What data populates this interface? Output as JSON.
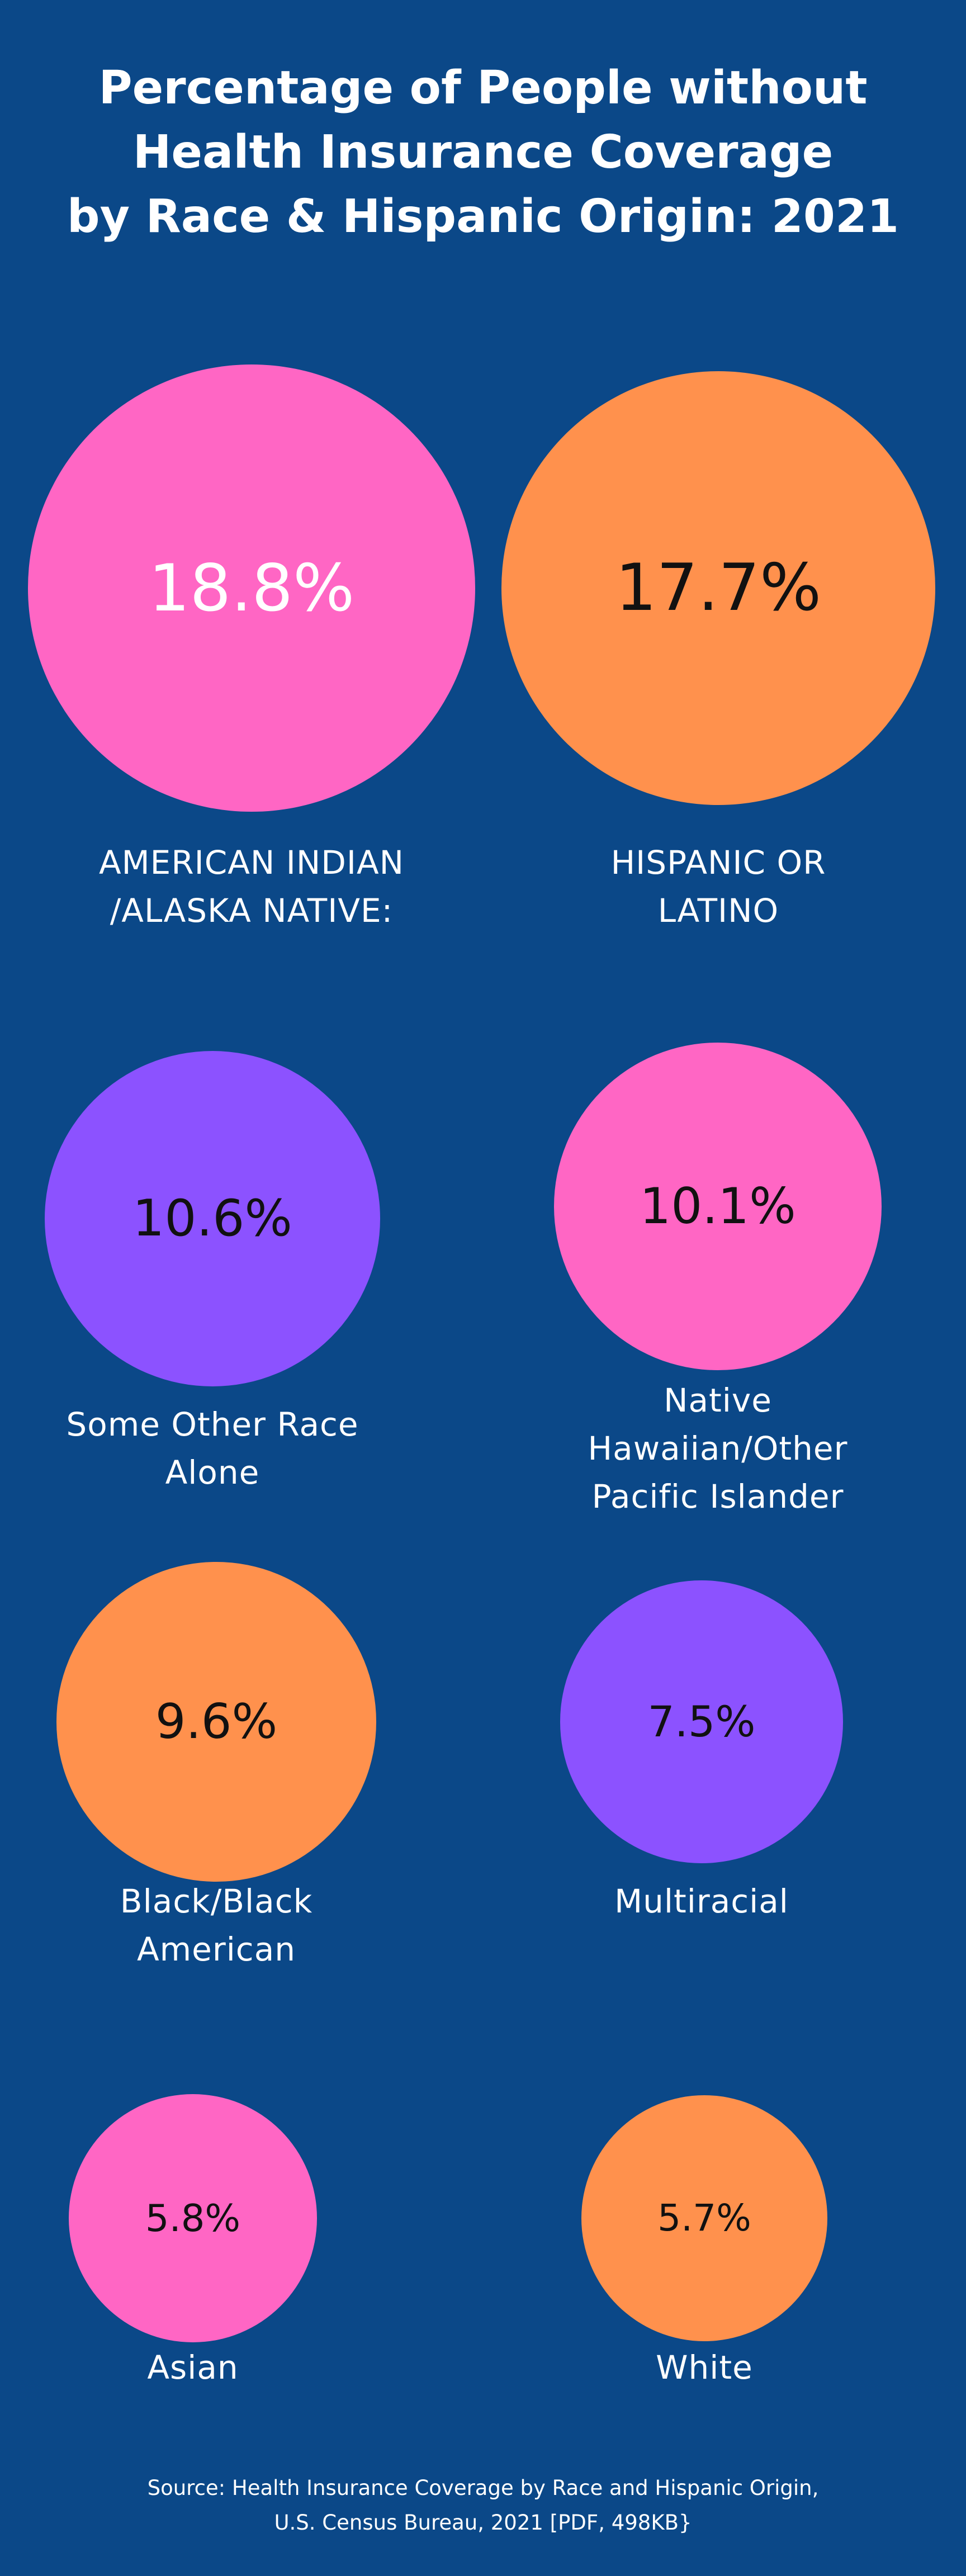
{
  "page": {
    "background": "#0b4888"
  },
  "title_lines": [
    "Percentage of People without",
    "Health Insurance Coverage",
    "by Race & Hispanic Origin: 2021"
  ],
  "source_lines": [
    "Source: Health Insurance Coverage by Race and Hispanic Origin,",
    "U.S. Census Bureau, 2021 [PDF, 498KB}"
  ],
  "colors": {
    "pink": "#ff66c4",
    "orange": "#ff914d",
    "purple": "#8c52ff",
    "text_dark": "#111111",
    "text_light": "#ffffff"
  },
  "chart_data": {
    "type": "bubble",
    "title": "Percentage of People without Health Insurance Coverage by Race & Hispanic Origin: 2021",
    "unit": "%",
    "items": [
      {
        "label_lines": [
          "AMERICAN INDIAN",
          "/ALASKA NATIVE:"
        ],
        "value": 18.8,
        "value_label": "18.8%",
        "color": "#ff66c4",
        "value_text_color": "#ffffff"
      },
      {
        "label_lines": [
          "HISPANIC OR",
          "LATINO"
        ],
        "value": 17.7,
        "value_label": "17.7%",
        "color": "#ff914d",
        "value_text_color": "#111111"
      },
      {
        "label_lines": [
          "Some Other Race",
          "Alone"
        ],
        "value": 10.6,
        "value_label": "10.6%",
        "color": "#8c52ff",
        "value_text_color": "#111111"
      },
      {
        "label_lines": [
          "Native",
          "Hawaiian/Other",
          "Pacific Islander"
        ],
        "value": 10.1,
        "value_label": "10.1%",
        "color": "#ff66c4",
        "value_text_color": "#111111"
      },
      {
        "label_lines": [
          "Black/Black",
          "American"
        ],
        "value": 9.6,
        "value_label": "9.6%",
        "color": "#ff914d",
        "value_text_color": "#111111"
      },
      {
        "label_lines": [
          "Multiracial"
        ],
        "value": 7.5,
        "value_label": "7.5%",
        "color": "#8c52ff",
        "value_text_color": "#111111"
      },
      {
        "label_lines": [
          "Asian"
        ],
        "value": 5.8,
        "value_label": "5.8%",
        "color": "#ff66c4",
        "value_text_color": "#111111"
      },
      {
        "label_lines": [
          "White"
        ],
        "value": 5.7,
        "value_label": "5.7%",
        "color": "#ff914d",
        "value_text_color": "#111111"
      }
    ]
  }
}
